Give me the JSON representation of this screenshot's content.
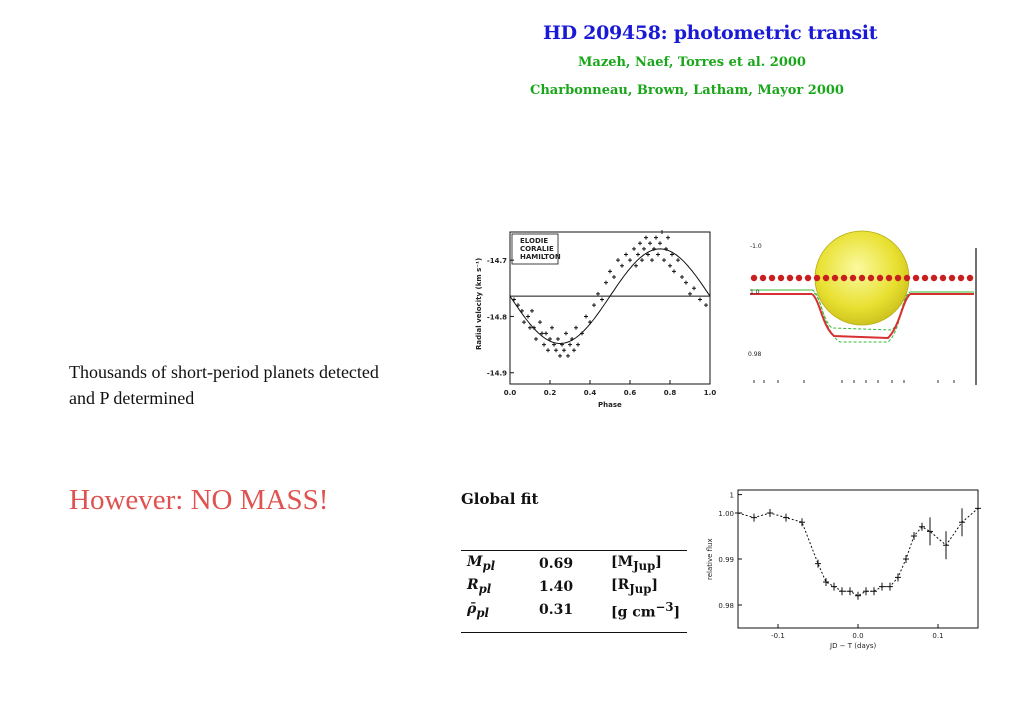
{
  "slide": {
    "title": "HD 209458:  photometric transit",
    "ref1": "Mazeh, Naef, Torres et al. 2000",
    "ref2": "Charbonneau, Brown, Latham, Mayor 2000",
    "text1": "Thousands of short-period planets detected  and P determined",
    "text2": "However: NO MASS!"
  },
  "colors": {
    "title": "#1a1ad6",
    "refs": "#1aa61a",
    "alert": "#e0524f",
    "planet": "#e8e030",
    "dots": "#c81e1e"
  },
  "fit": {
    "heading": "Global fit",
    "rows": [
      {
        "sym": "M",
        "sub": "pl",
        "value": "0.69",
        "unit": "[M",
        "usub": "Jup",
        "uend": "]"
      },
      {
        "sym": "R",
        "sub": "pl",
        "value": "1.40",
        "unit": "[R",
        "usub": "Jup",
        "uend": "]"
      },
      {
        "sym": "ρ̄",
        "sub": "pl",
        "value": "0.31",
        "unit": "[g  cm",
        "usub": "",
        "usup": "−3",
        "uend": "]"
      }
    ]
  },
  "chart_data": [
    {
      "type": "scatter",
      "xlabel": "Phase",
      "ylabel": "Radial velocity (km s⁻¹)",
      "xlim": [
        0.0,
        1.0
      ],
      "ylim": [
        -14.92,
        -14.65
      ],
      "xticks": [
        "0.0",
        "0.2",
        "0.4",
        "0.6",
        "0.8",
        "1.0"
      ],
      "yticks": [
        "-14.7",
        "-14.8",
        "-14.9"
      ],
      "legend": [
        "ELODIE",
        "CORALIE",
        "HAMILTON"
      ],
      "legend_position": "top-left",
      "baseline": -14.764,
      "model_amplitude": 0.084,
      "model_phase_max": 0.75,
      "x": [
        0.02,
        0.04,
        0.06,
        0.07,
        0.09,
        0.1,
        0.11,
        0.12,
        0.13,
        0.15,
        0.16,
        0.17,
        0.18,
        0.19,
        0.2,
        0.21,
        0.22,
        0.23,
        0.24,
        0.25,
        0.26,
        0.27,
        0.28,
        0.29,
        0.3,
        0.31,
        0.32,
        0.33,
        0.34,
        0.36,
        0.38,
        0.4,
        0.42,
        0.44,
        0.46,
        0.48,
        0.5,
        0.52,
        0.54,
        0.56,
        0.58,
        0.6,
        0.62,
        0.63,
        0.64,
        0.65,
        0.66,
        0.67,
        0.68,
        0.69,
        0.7,
        0.71,
        0.72,
        0.73,
        0.74,
        0.75,
        0.76,
        0.77,
        0.78,
        0.79,
        0.8,
        0.81,
        0.82,
        0.84,
        0.86,
        0.88,
        0.9,
        0.92,
        0.95,
        0.98
      ],
      "y": [
        -14.77,
        -14.78,
        -14.79,
        -14.81,
        -14.8,
        -14.82,
        -14.79,
        -14.82,
        -14.84,
        -14.81,
        -14.83,
        -14.85,
        -14.83,
        -14.86,
        -14.84,
        -14.82,
        -14.85,
        -14.86,
        -14.84,
        -14.87,
        -14.85,
        -14.86,
        -14.83,
        -14.87,
        -14.85,
        -14.84,
        -14.86,
        -14.82,
        -14.85,
        -14.83,
        -14.8,
        -14.81,
        -14.78,
        -14.76,
        -14.77,
        -14.74,
        -14.72,
        -14.73,
        -14.7,
        -14.71,
        -14.69,
        -14.7,
        -14.68,
        -14.71,
        -14.69,
        -14.67,
        -14.7,
        -14.68,
        -14.66,
        -14.69,
        -14.67,
        -14.7,
        -14.68,
        -14.66,
        -14.69,
        -14.67,
        -14.65,
        -14.7,
        -14.68,
        -14.66,
        -14.71,
        -14.69,
        -14.72,
        -14.7,
        -14.73,
        -14.74,
        -14.76,
        -14.75,
        -14.77,
        -14.78
      ]
    },
    {
      "type": "line",
      "xlim": [
        -0.15,
        0.15
      ],
      "ylim": [
        0.975,
        1.005
      ],
      "xticks": [
        "-0.1",
        "0.0",
        "0.1"
      ],
      "yticks": [
        "1",
        "1.00",
        "0.99",
        "0.98"
      ],
      "ylabel": "relative flux",
      "xlabel": "JD − T (days)",
      "x": [
        -0.15,
        -0.13,
        -0.11,
        -0.09,
        -0.07,
        -0.05,
        -0.04,
        -0.03,
        -0.02,
        -0.01,
        0.0,
        0.01,
        0.02,
        0.03,
        0.04,
        0.05,
        0.06,
        0.07,
        0.08,
        0.09,
        0.11,
        0.13,
        0.15
      ],
      "y": [
        1.0,
        0.999,
        1.0,
        0.999,
        0.998,
        0.989,
        0.985,
        0.984,
        0.983,
        0.983,
        0.982,
        0.983,
        0.983,
        0.984,
        0.984,
        0.986,
        0.99,
        0.995,
        0.997,
        0.996,
        0.993,
        0.998,
        1.001
      ]
    }
  ]
}
